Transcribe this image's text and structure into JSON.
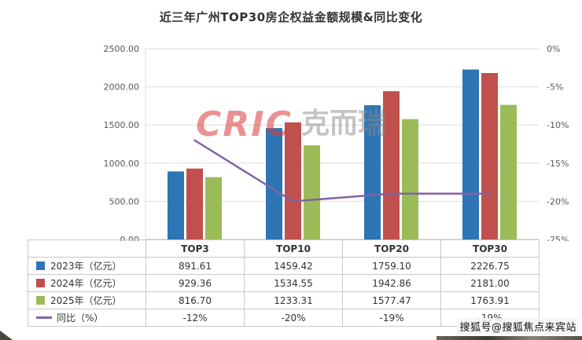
{
  "title": "近三年广州TOP30房企权益金额规模&同比变化",
  "watermark": {
    "brand": "CRIC",
    "brand_suffix": "克而瑞"
  },
  "footer": {
    "credit": "搜狐号@搜狐焦点来宾站"
  },
  "chart_data": {
    "type": "bar+line",
    "title": "近三年广州TOP30房企权益金额规模&同比变化",
    "categories": [
      "TOP3",
      "TOP10",
      "TOP20",
      "TOP30"
    ],
    "bar_series": [
      {
        "name": "2023年（亿元）",
        "color": "#2E75B6",
        "values": [
          891.61,
          1459.42,
          1759.1,
          2226.75
        ],
        "labels": [
          "891.61",
          "1459.42",
          "1759.10",
          "2226.75"
        ]
      },
      {
        "name": "2024年（亿元）",
        "color": "#C0504D",
        "values": [
          929.36,
          1534.55,
          1942.86,
          2181.0
        ],
        "labels": [
          "929.36",
          "1534.55",
          "1942.86",
          "2181.00"
        ]
      },
      {
        "name": "2025年（亿元）",
        "color": "#9BBB59",
        "values": [
          816.7,
          1233.31,
          1577.47,
          1763.91
        ],
        "labels": [
          "816.70",
          "1233.31",
          "1577.47",
          "1763.91"
        ]
      }
    ],
    "line_series": {
      "name": "同比（%）",
      "color": "#8064A2",
      "values": [
        -12,
        -20,
        -19,
        -19
      ],
      "labels": [
        "-12%",
        "-20%",
        "-19%",
        "-19%"
      ]
    },
    "left_axis": {
      "min": 0,
      "max": 2500,
      "ticks": [
        "2500.00",
        "2000.00",
        "1500.00",
        "1000.00",
        "500.00",
        "0.00"
      ]
    },
    "right_axis": {
      "min": -25,
      "max": 0,
      "ticks": [
        "0%",
        "-5%",
        "-10%",
        "-15%",
        "-20%",
        "-25%"
      ]
    },
    "grid": true,
    "legend_position": "table-left"
  }
}
